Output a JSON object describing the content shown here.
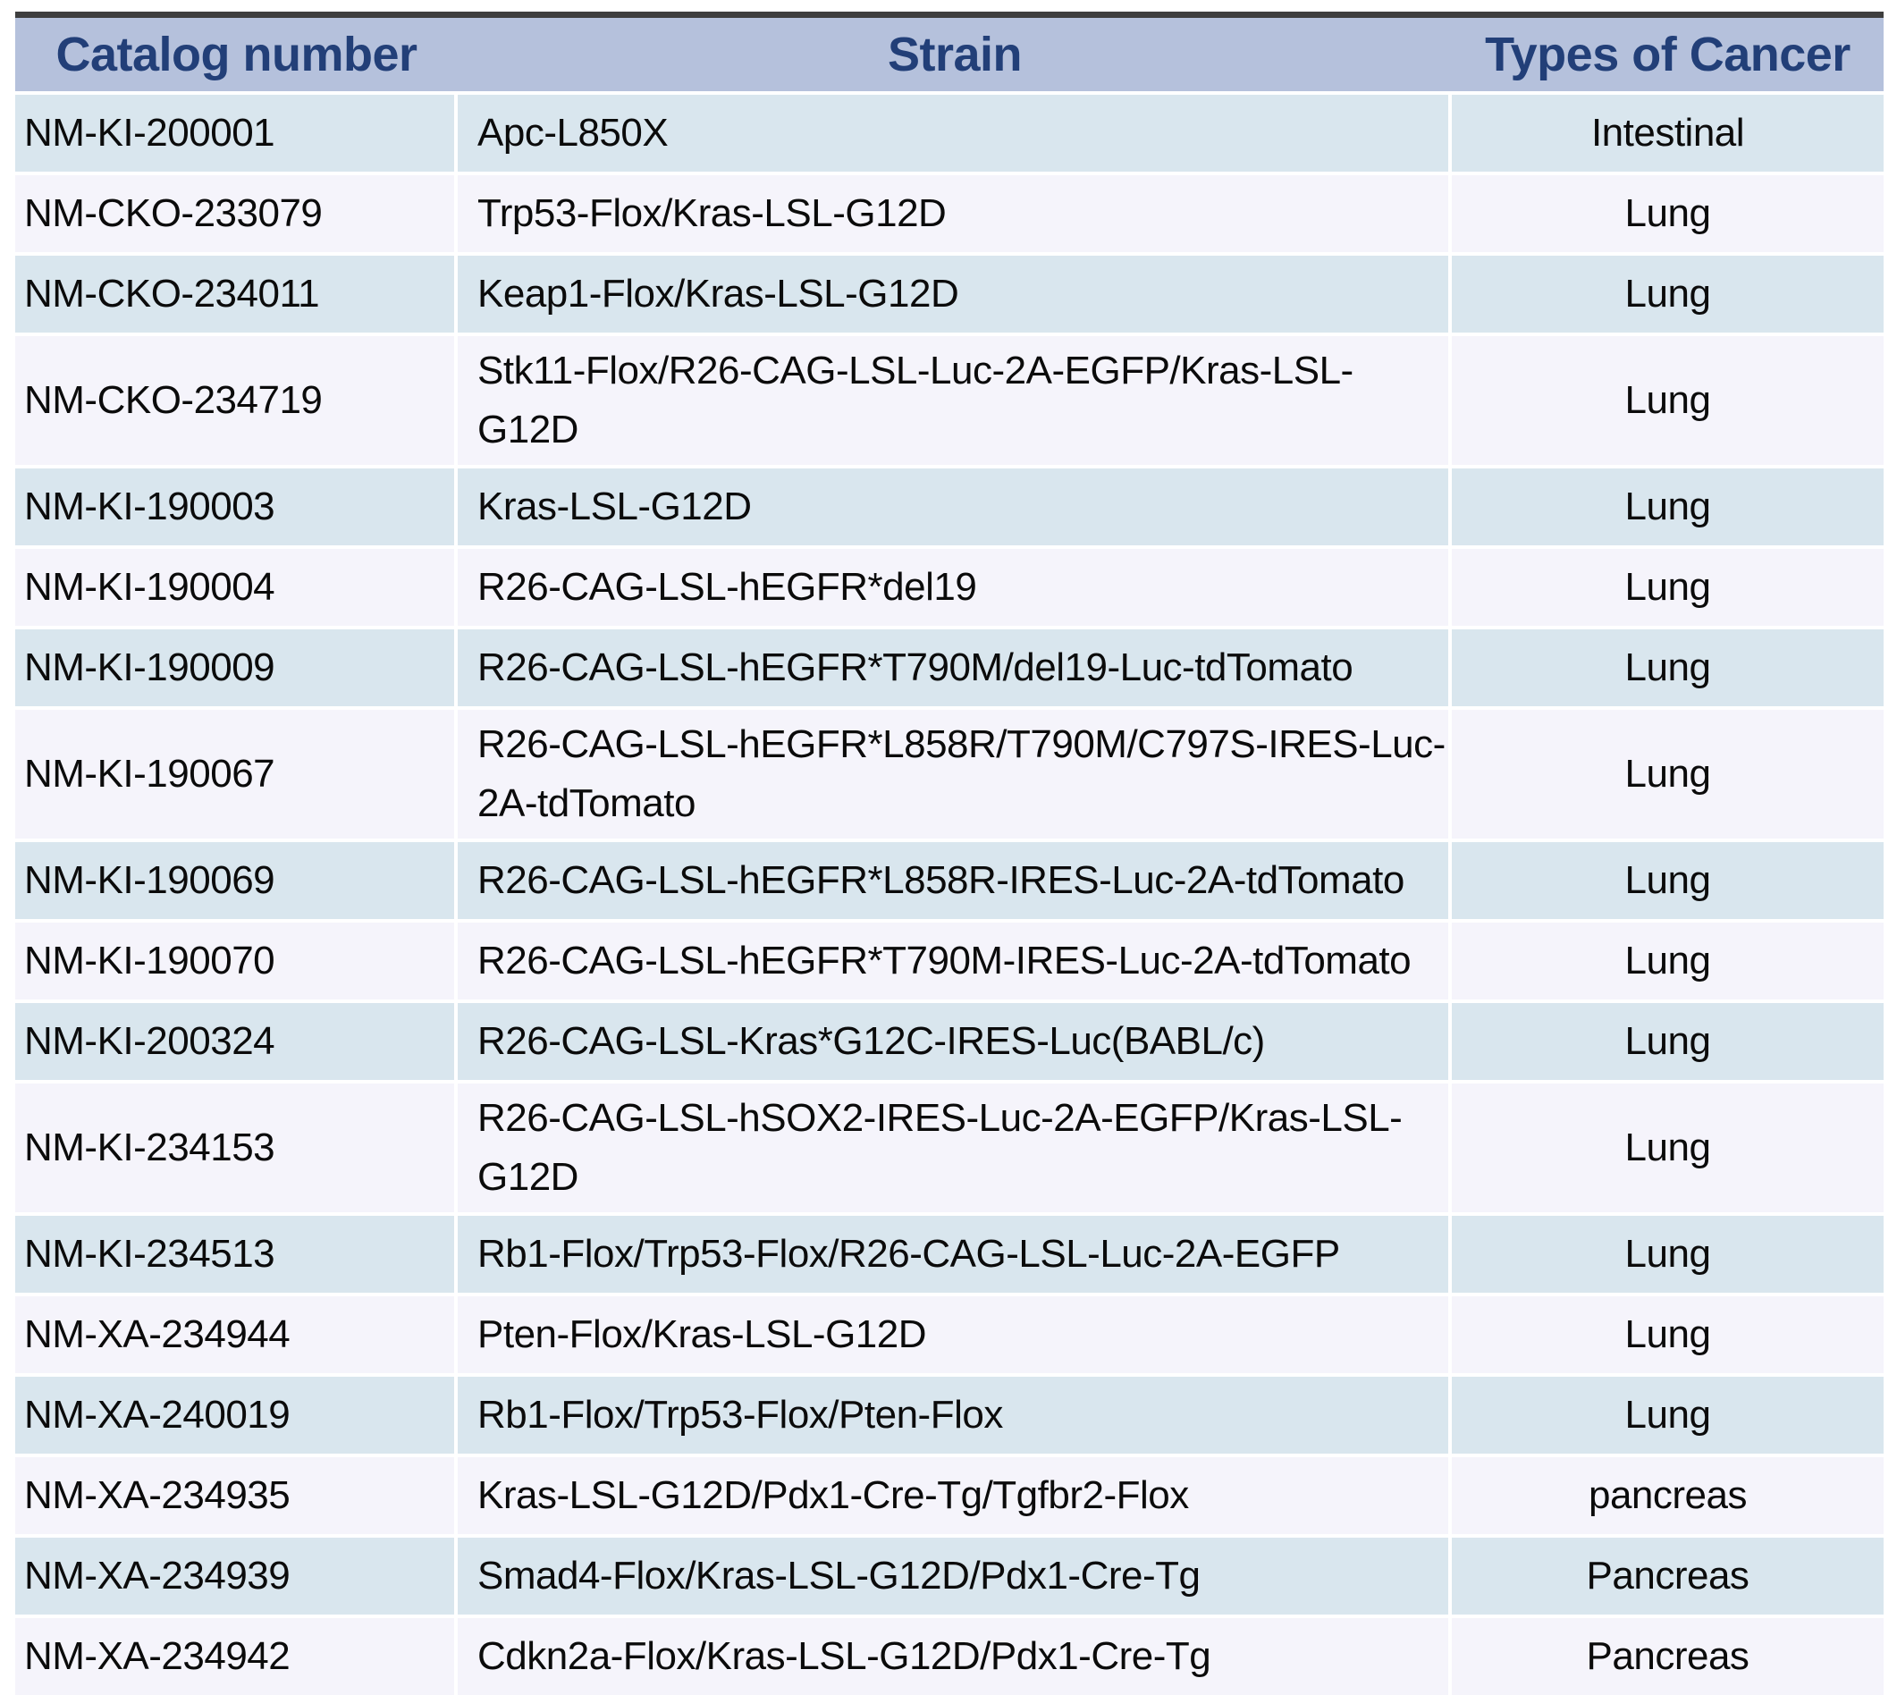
{
  "chart_data": {
    "type": "table",
    "columns": [
      "Catalog number",
      "Strain",
      "Types of Cancer"
    ],
    "rows": [
      [
        "NM-KI-200001",
        "Apc-L850X",
        "Intestinal"
      ],
      [
        "NM-CKO-233079",
        "Trp53-Flox/Kras-LSL-G12D",
        "Lung"
      ],
      [
        "NM-CKO-234011",
        "Keap1-Flox/Kras-LSL-G12D",
        "Lung"
      ],
      [
        "NM-CKO-234719",
        "Stk11-Flox/R26-CAG-LSL-Luc-2A-EGFP/Kras-LSL-G12D",
        "Lung"
      ],
      [
        "NM-KI-190003",
        "Kras-LSL-G12D",
        "Lung"
      ],
      [
        "NM-KI-190004",
        "R26-CAG-LSL-hEGFR*del19",
        "Lung"
      ],
      [
        "NM-KI-190009",
        "R26-CAG-LSL-hEGFR*T790M/del19-Luc-tdTomato",
        "Lung"
      ],
      [
        "NM-KI-190067",
        "R26-CAG-LSL-hEGFR*L858R/T790M/C797S-IRES-Luc-2A-tdTomato",
        "Lung"
      ],
      [
        "NM-KI-190069",
        "R26-CAG-LSL-hEGFR*L858R-IRES-Luc-2A-tdTomato",
        "Lung"
      ],
      [
        "NM-KI-190070",
        "R26-CAG-LSL-hEGFR*T790M-IRES-Luc-2A-tdTomato",
        "Lung"
      ],
      [
        "NM-KI-200324",
        "R26-CAG-LSL-Kras*G12C-IRES-Luc(BABL/c)",
        "Lung"
      ],
      [
        "NM-KI-234153",
        "R26-CAG-LSL-hSOX2-IRES-Luc-2A-EGFP/Kras-LSL-G12D",
        "Lung"
      ],
      [
        "NM-KI-234513",
        "Rb1-Flox/Trp53-Flox/R26-CAG-LSL-Luc-2A-EGFP",
        "Lung"
      ],
      [
        "NM-XA-234944",
        "Pten-Flox/Kras-LSL-G12D",
        "Lung"
      ],
      [
        "NM-XA-240019",
        "Rb1-Flox/Trp53-Flox/Pten-Flox",
        "Lung"
      ],
      [
        "NM-XA-234935",
        "Kras-LSL-G12D/Pdx1-Cre-Tg/Tgfbr2-Flox",
        "pancreas"
      ],
      [
        "NM-XA-234939",
        "Smad4-Flox/Kras-LSL-G12D/Pdx1-Cre-Tg",
        "Pancreas"
      ],
      [
        "NM-XA-234942",
        "Cdkn2a-Flox/Kras-LSL-G12D/Pdx1-Cre-Tg",
        "Pancreas"
      ]
    ]
  },
  "table": {
    "columns": [
      {
        "label": "Catalog number"
      },
      {
        "label": "Strain"
      },
      {
        "label": "Types of Cancer"
      }
    ]
  },
  "colors": {
    "header_bg": "#b5c1dc",
    "header_text": "#223f78",
    "row_blue": "#d9e6ee",
    "row_lavender": "#f5f4fb",
    "top_border": "#3e3e3e",
    "body_text": "#0b0b0b",
    "separator": "#ffffff"
  }
}
